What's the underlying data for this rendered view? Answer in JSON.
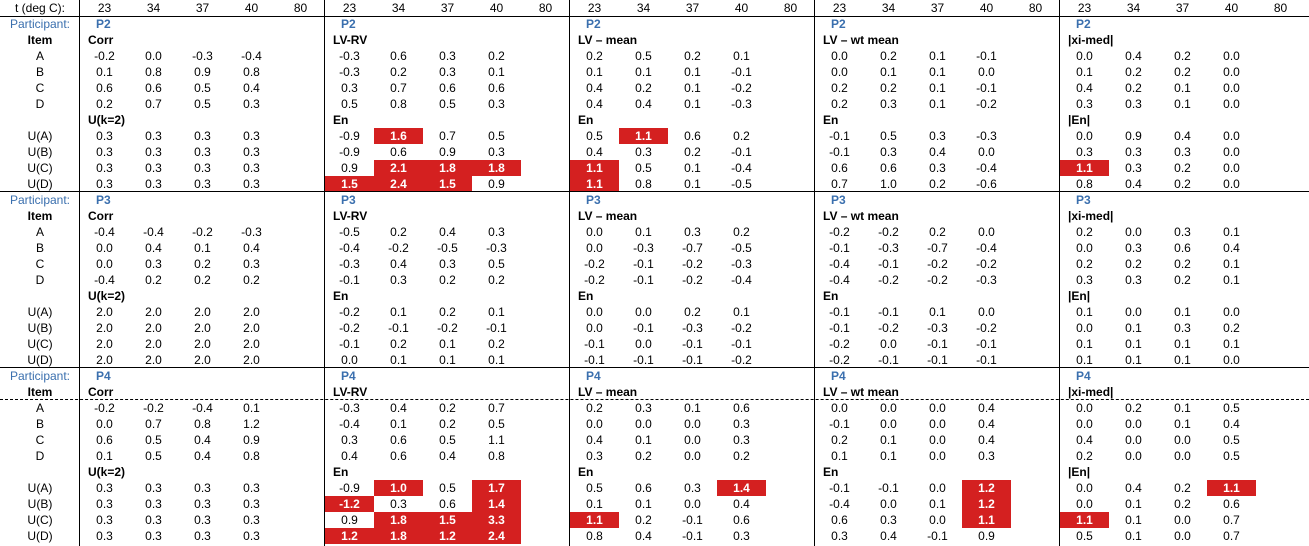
{
  "header": {
    "label": "t (deg C):",
    "temps": [
      "23",
      "34",
      "37",
      "40",
      "80"
    ]
  },
  "panels": [
    {
      "participant_label": "Participant:",
      "item_label": "Item",
      "dashed": false,
      "blocks": [
        {
          "pid": "P2",
          "top_title": "Corr",
          "bottom_title": "U(k=2)",
          "top": [
            [
              "-0.2",
              "0.0",
              "-0.3",
              "-0.4"
            ],
            [
              "0.1",
              "0.8",
              "0.9",
              "0.8"
            ],
            [
              "0.6",
              "0.6",
              "0.5",
              "0.4"
            ],
            [
              "0.2",
              "0.7",
              "0.5",
              "0.3"
            ]
          ],
          "bottom": [
            [
              "0.3",
              "0.3",
              "0.3",
              "0.3"
            ],
            [
              "0.3",
              "0.3",
              "0.3",
              "0.3"
            ],
            [
              "0.3",
              "0.3",
              "0.3",
              "0.3"
            ],
            [
              "0.3",
              "0.3",
              "0.3",
              "0.3"
            ]
          ],
          "hl": []
        },
        {
          "pid": "P2",
          "top_title": "LV-RV",
          "bottom_title": "En",
          "top": [
            [
              "-0.3",
              "0.6",
              "0.3",
              "0.2"
            ],
            [
              "-0.3",
              "0.2",
              "0.3",
              "0.1"
            ],
            [
              "0.3",
              "0.7",
              "0.6",
              "0.6"
            ],
            [
              "0.5",
              "0.8",
              "0.5",
              "0.3"
            ]
          ],
          "bottom": [
            [
              "-0.9",
              "1.6",
              "0.7",
              "0.5"
            ],
            [
              "-0.9",
              "0.6",
              "0.9",
              "0.3"
            ],
            [
              "0.9",
              "2.1",
              "1.8",
              "1.8"
            ],
            [
              "1.5",
              "2.4",
              "1.5",
              "0.9"
            ]
          ],
          "hl": [
            [
              0,
              1
            ],
            [
              2,
              1
            ],
            [
              2,
              2
            ],
            [
              2,
              3
            ],
            [
              3,
              0
            ],
            [
              3,
              1
            ],
            [
              3,
              2
            ]
          ]
        },
        {
          "pid": "P2",
          "top_title": "LV – mean",
          "bottom_title": "En",
          "top": [
            [
              "0.2",
              "0.5",
              "0.2",
              "0.1"
            ],
            [
              "0.1",
              "0.1",
              "0.1",
              "-0.1"
            ],
            [
              "0.4",
              "0.2",
              "0.1",
              "-0.2"
            ],
            [
              "0.4",
              "0.4",
              "0.1",
              "-0.3"
            ]
          ],
          "bottom": [
            [
              "0.5",
              "1.1",
              "0.6",
              "0.2"
            ],
            [
              "0.4",
              "0.3",
              "0.2",
              "-0.1"
            ],
            [
              "1.1",
              "0.5",
              "0.1",
              "-0.4"
            ],
            [
              "1.1",
              "0.8",
              "0.1",
              "-0.5"
            ]
          ],
          "hl": [
            [
              0,
              1
            ],
            [
              2,
              0
            ],
            [
              3,
              0
            ]
          ]
        },
        {
          "pid": "P2",
          "top_title": "LV – wt mean",
          "bottom_title": "En",
          "top": [
            [
              "0.0",
              "0.2",
              "0.1",
              "-0.1"
            ],
            [
              "0.0",
              "0.1",
              "0.1",
              "0.0"
            ],
            [
              "0.2",
              "0.2",
              "0.1",
              "-0.1"
            ],
            [
              "0.2",
              "0.3",
              "0.1",
              "-0.2"
            ]
          ],
          "bottom": [
            [
              "-0.1",
              "0.5",
              "0.3",
              "-0.3"
            ],
            [
              "-0.1",
              "0.3",
              "0.4",
              "0.0"
            ],
            [
              "0.6",
              "0.6",
              "0.3",
              "-0.4"
            ],
            [
              "0.7",
              "1.0",
              "0.2",
              "-0.6"
            ]
          ],
          "hl": []
        },
        {
          "pid": "P2",
          "top_title": "|xi-med|",
          "bottom_title": "|En|",
          "top": [
            [
              "0.0",
              "0.4",
              "0.2",
              "0.0"
            ],
            [
              "0.1",
              "0.2",
              "0.2",
              "0.0"
            ],
            [
              "0.4",
              "0.2",
              "0.1",
              "0.0"
            ],
            [
              "0.3",
              "0.3",
              "0.1",
              "0.0"
            ]
          ],
          "bottom": [
            [
              "0.0",
              "0.9",
              "0.4",
              "0.0"
            ],
            [
              "0.3",
              "0.3",
              "0.3",
              "0.0"
            ],
            [
              "1.1",
              "0.3",
              "0.2",
              "0.0"
            ],
            [
              "0.8",
              "0.4",
              "0.2",
              "0.0"
            ]
          ],
          "hl": [
            [
              2,
              0
            ]
          ]
        }
      ]
    },
    {
      "participant_label": "Participant:",
      "item_label": "Item",
      "dashed": false,
      "blocks": [
        {
          "pid": "P3",
          "top_title": "Corr",
          "bottom_title": "U(k=2)",
          "top": [
            [
              "-0.4",
              "-0.4",
              "-0.2",
              "-0.3"
            ],
            [
              "0.0",
              "0.4",
              "0.1",
              "0.4"
            ],
            [
              "0.0",
              "0.3",
              "0.2",
              "0.3"
            ],
            [
              "-0.4",
              "0.2",
              "0.2",
              "0.2"
            ]
          ],
          "bottom": [
            [
              "2.0",
              "2.0",
              "2.0",
              "2.0"
            ],
            [
              "2.0",
              "2.0",
              "2.0",
              "2.0"
            ],
            [
              "2.0",
              "2.0",
              "2.0",
              "2.0"
            ],
            [
              "2.0",
              "2.0",
              "2.0",
              "2.0"
            ]
          ],
          "hl": []
        },
        {
          "pid": "P3",
          "top_title": "LV-RV",
          "bottom_title": "En",
          "top": [
            [
              "-0.5",
              "0.2",
              "0.4",
              "0.3"
            ],
            [
              "-0.4",
              "-0.2",
              "-0.5",
              "-0.3"
            ],
            [
              "-0.3",
              "0.4",
              "0.3",
              "0.5"
            ],
            [
              "-0.1",
              "0.3",
              "0.2",
              "0.2"
            ]
          ],
          "bottom": [
            [
              "-0.2",
              "0.1",
              "0.2",
              "0.1"
            ],
            [
              "-0.2",
              "-0.1",
              "-0.2",
              "-0.1"
            ],
            [
              "-0.1",
              "0.2",
              "0.1",
              "0.2"
            ],
            [
              "0.0",
              "0.1",
              "0.1",
              "0.1"
            ]
          ],
          "hl": []
        },
        {
          "pid": "P3",
          "top_title": "LV – mean",
          "bottom_title": "En",
          "top": [
            [
              "0.0",
              "0.1",
              "0.3",
              "0.2"
            ],
            [
              "0.0",
              "-0.3",
              "-0.7",
              "-0.5"
            ],
            [
              "-0.2",
              "-0.1",
              "-0.2",
              "-0.3"
            ],
            [
              "-0.2",
              "-0.1",
              "-0.2",
              "-0.4"
            ]
          ],
          "bottom": [
            [
              "0.0",
              "0.0",
              "0.2",
              "0.1"
            ],
            [
              "0.0",
              "-0.1",
              "-0.3",
              "-0.2"
            ],
            [
              "-0.1",
              "0.0",
              "-0.1",
              "-0.1"
            ],
            [
              "-0.1",
              "-0.1",
              "-0.1",
              "-0.2"
            ]
          ],
          "hl": []
        },
        {
          "pid": "P3",
          "top_title": "LV – wt mean",
          "bottom_title": "En",
          "top": [
            [
              "-0.2",
              "-0.2",
              "0.2",
              "0.0"
            ],
            [
              "-0.1",
              "-0.3",
              "-0.7",
              "-0.4"
            ],
            [
              "-0.4",
              "-0.1",
              "-0.2",
              "-0.2"
            ],
            [
              "-0.4",
              "-0.2",
              "-0.2",
              "-0.3"
            ]
          ],
          "bottom": [
            [
              "-0.1",
              "-0.1",
              "0.1",
              "0.0"
            ],
            [
              "-0.1",
              "-0.2",
              "-0.3",
              "-0.2"
            ],
            [
              "-0.2",
              "0.0",
              "-0.1",
              "-0.1"
            ],
            [
              "-0.2",
              "-0.1",
              "-0.1",
              "-0.1"
            ]
          ],
          "hl": []
        },
        {
          "pid": "P3",
          "top_title": "|xi-med|",
          "bottom_title": "|En|",
          "top": [
            [
              "0.2",
              "0.0",
              "0.3",
              "0.1"
            ],
            [
              "0.0",
              "0.3",
              "0.6",
              "0.4"
            ],
            [
              "0.2",
              "0.2",
              "0.2",
              "0.1"
            ],
            [
              "0.3",
              "0.3",
              "0.2",
              "0.1"
            ]
          ],
          "bottom": [
            [
              "0.1",
              "0.0",
              "0.1",
              "0.0"
            ],
            [
              "0.0",
              "0.1",
              "0.3",
              "0.2"
            ],
            [
              "0.1",
              "0.1",
              "0.1",
              "0.1"
            ],
            [
              "0.1",
              "0.1",
              "0.1",
              "0.0"
            ]
          ],
          "hl": []
        }
      ]
    },
    {
      "participant_label": "Participant:",
      "item_label": "Item",
      "dashed": true,
      "blocks": [
        {
          "pid": "P4",
          "top_title": "Corr",
          "bottom_title": "U(k=2)",
          "top": [
            [
              "-0.2",
              "-0.2",
              "-0.4",
              "0.1"
            ],
            [
              "0.0",
              "0.7",
              "0.8",
              "1.2"
            ],
            [
              "0.6",
              "0.5",
              "0.4",
              "0.9"
            ],
            [
              "0.1",
              "0.5",
              "0.4",
              "0.8"
            ]
          ],
          "bottom": [
            [
              "0.3",
              "0.3",
              "0.3",
              "0.3"
            ],
            [
              "0.3",
              "0.3",
              "0.3",
              "0.3"
            ],
            [
              "0.3",
              "0.3",
              "0.3",
              "0.3"
            ],
            [
              "0.3",
              "0.3",
              "0.3",
              "0.3"
            ]
          ],
          "hl": []
        },
        {
          "pid": "P4",
          "top_title": "LV-RV",
          "bottom_title": "En",
          "top": [
            [
              "-0.3",
              "0.4",
              "0.2",
              "0.7"
            ],
            [
              "-0.4",
              "0.1",
              "0.2",
              "0.5"
            ],
            [
              "0.3",
              "0.6",
              "0.5",
              "1.1"
            ],
            [
              "0.4",
              "0.6",
              "0.4",
              "0.8"
            ]
          ],
          "bottom": [
            [
              "-0.9",
              "1.0",
              "0.5",
              "1.7"
            ],
            [
              "-1.2",
              "0.3",
              "0.6",
              "1.4"
            ],
            [
              "0.9",
              "1.8",
              "1.5",
              "3.3"
            ],
            [
              "1.2",
              "1.8",
              "1.2",
              "2.4"
            ]
          ],
          "hl": [
            [
              0,
              1
            ],
            [
              0,
              3
            ],
            [
              1,
              0
            ],
            [
              1,
              3
            ],
            [
              2,
              1
            ],
            [
              2,
              2
            ],
            [
              2,
              3
            ],
            [
              3,
              0
            ],
            [
              3,
              1
            ],
            [
              3,
              2
            ],
            [
              3,
              3
            ]
          ]
        },
        {
          "pid": "P4",
          "top_title": "LV – mean",
          "bottom_title": "En",
          "top": [
            [
              "0.2",
              "0.3",
              "0.1",
              "0.6"
            ],
            [
              "0.0",
              "0.0",
              "0.0",
              "0.3"
            ],
            [
              "0.4",
              "0.1",
              "0.0",
              "0.3"
            ],
            [
              "0.3",
              "0.2",
              "0.0",
              "0.2"
            ]
          ],
          "bottom": [
            [
              "0.5",
              "0.6",
              "0.3",
              "1.4"
            ],
            [
              "0.1",
              "0.1",
              "0.0",
              "0.4"
            ],
            [
              "1.1",
              "0.2",
              "-0.1",
              "0.6"
            ],
            [
              "0.8",
              "0.4",
              "-0.1",
              "0.3"
            ]
          ],
          "hl": [
            [
              0,
              3
            ],
            [
              2,
              0
            ]
          ]
        },
        {
          "pid": "P4",
          "top_title": "LV – wt mean",
          "bottom_title": "En",
          "top": [
            [
              "0.0",
              "0.0",
              "0.0",
              "0.4"
            ],
            [
              "-0.1",
              "0.0",
              "0.0",
              "0.4"
            ],
            [
              "0.2",
              "0.1",
              "0.0",
              "0.4"
            ],
            [
              "0.1",
              "0.1",
              "0.0",
              "0.3"
            ]
          ],
          "bottom": [
            [
              "-0.1",
              "-0.1",
              "0.0",
              "1.2"
            ],
            [
              "-0.4",
              "0.0",
              "0.1",
              "1.2"
            ],
            [
              "0.6",
              "0.3",
              "0.0",
              "1.1"
            ],
            [
              "0.3",
              "0.4",
              "-0.1",
              "0.9"
            ]
          ],
          "hl": [
            [
              0,
              3
            ],
            [
              1,
              3
            ],
            [
              2,
              3
            ]
          ]
        },
        {
          "pid": "P4",
          "top_title": "|xi-med|",
          "bottom_title": "|En|",
          "top": [
            [
              "0.0",
              "0.2",
              "0.1",
              "0.5"
            ],
            [
              "0.0",
              "0.0",
              "0.1",
              "0.4"
            ],
            [
              "0.4",
              "0.0",
              "0.0",
              "0.5"
            ],
            [
              "0.2",
              "0.0",
              "0.0",
              "0.5"
            ]
          ],
          "bottom": [
            [
              "0.0",
              "0.4",
              "0.2",
              "1.1"
            ],
            [
              "0.0",
              "0.1",
              "0.2",
              "0.6"
            ],
            [
              "1.1",
              "0.1",
              "0.0",
              "0.7"
            ],
            [
              "0.5",
              "0.1",
              "0.0",
              "0.7"
            ]
          ],
          "hl": [
            [
              0,
              3
            ],
            [
              2,
              0
            ]
          ]
        }
      ]
    }
  ],
  "row_items_top": [
    "A",
    "B",
    "C",
    "D"
  ],
  "row_items_bottom": [
    "U(A)",
    "U(B)",
    "U(C)",
    "U(D)"
  ],
  "colors": {
    "highlight": "#d42020",
    "participant_text": "#3a6fae"
  }
}
